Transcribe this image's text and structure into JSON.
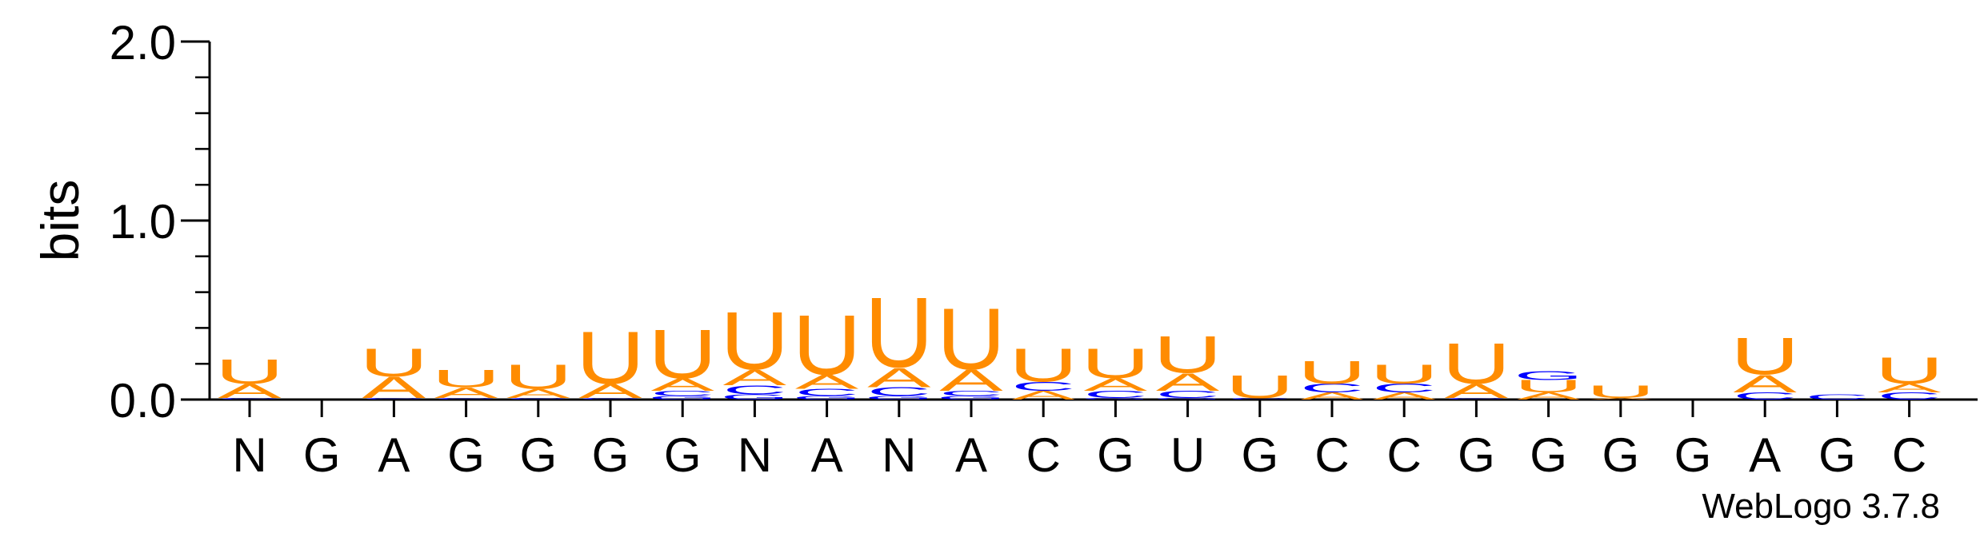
{
  "chart_data": {
    "type": "sequence-logo",
    "ylabel": "bits",
    "ylim": [
      0,
      2.0
    ],
    "yticks": [
      "0.0",
      "1.0",
      "2.0"
    ],
    "credit": "WebLogo 3.7.8",
    "colors": {
      "U": "#ff8c00",
      "A": "#ff8c00",
      "C": "#0000ff",
      "G": "#0000ff"
    },
    "positions": [
      {
        "label": "N",
        "stack": [
          {
            "letter": "C",
            "bits": 0.01
          },
          {
            "letter": "A",
            "bits": 0.08
          },
          {
            "letter": "U",
            "bits": 0.14
          }
        ]
      },
      {
        "label": "G",
        "stack": []
      },
      {
        "label": "A",
        "stack": [
          {
            "letter": "C",
            "bits": 0.01
          },
          {
            "letter": "A",
            "bits": 0.12
          },
          {
            "letter": "U",
            "bits": 0.16
          }
        ]
      },
      {
        "label": "G",
        "stack": [
          {
            "letter": "C",
            "bits": 0.01
          },
          {
            "letter": "A",
            "bits": 0.06
          },
          {
            "letter": "U",
            "bits": 0.1
          }
        ]
      },
      {
        "label": "G",
        "stack": [
          {
            "letter": "C",
            "bits": 0.01
          },
          {
            "letter": "A",
            "bits": 0.05
          },
          {
            "letter": "U",
            "bits": 0.14
          }
        ]
      },
      {
        "label": "G",
        "stack": [
          {
            "letter": "C",
            "bits": 0.01
          },
          {
            "letter": "A",
            "bits": 0.08
          },
          {
            "letter": "U",
            "bits": 0.3
          }
        ]
      },
      {
        "label": "G",
        "stack": [
          {
            "letter": "G",
            "bits": 0.02
          },
          {
            "letter": "C",
            "bits": 0.03
          },
          {
            "letter": "A",
            "bits": 0.07
          },
          {
            "letter": "U",
            "bits": 0.28
          }
        ]
      },
      {
        "label": "N",
        "stack": [
          {
            "letter": "G",
            "bits": 0.03
          },
          {
            "letter": "C",
            "bits": 0.05
          },
          {
            "letter": "A",
            "bits": 0.09
          },
          {
            "letter": "U",
            "bits": 0.33
          }
        ]
      },
      {
        "label": "A",
        "stack": [
          {
            "letter": "G",
            "bits": 0.02
          },
          {
            "letter": "C",
            "bits": 0.04
          },
          {
            "letter": "A",
            "bits": 0.08
          },
          {
            "letter": "U",
            "bits": 0.34
          }
        ]
      },
      {
        "label": "N",
        "stack": [
          {
            "letter": "G",
            "bits": 0.02
          },
          {
            "letter": "C",
            "bits": 0.05
          },
          {
            "letter": "A",
            "bits": 0.11
          },
          {
            "letter": "U",
            "bits": 0.4
          }
        ]
      },
      {
        "label": "A",
        "stack": [
          {
            "letter": "G",
            "bits": 0.02
          },
          {
            "letter": "C",
            "bits": 0.03
          },
          {
            "letter": "A",
            "bits": 0.12
          },
          {
            "letter": "U",
            "bits": 0.35
          }
        ]
      },
      {
        "label": "C",
        "stack": [
          {
            "letter": "A",
            "bits": 0.05
          },
          {
            "letter": "C",
            "bits": 0.05
          },
          {
            "letter": "U",
            "bits": 0.19
          }
        ]
      },
      {
        "label": "G",
        "stack": [
          {
            "letter": "G",
            "bits": 0.01
          },
          {
            "letter": "C",
            "bits": 0.04
          },
          {
            "letter": "A",
            "bits": 0.07
          },
          {
            "letter": "U",
            "bits": 0.17
          }
        ]
      },
      {
        "label": "U",
        "stack": [
          {
            "letter": "G",
            "bits": 0.01
          },
          {
            "letter": "C",
            "bits": 0.04
          },
          {
            "letter": "A",
            "bits": 0.1
          },
          {
            "letter": "U",
            "bits": 0.21
          }
        ]
      },
      {
        "label": "G",
        "stack": [
          {
            "letter": "C",
            "bits": 0.01
          },
          {
            "letter": "U",
            "bits": 0.13
          }
        ]
      },
      {
        "label": "C",
        "stack": [
          {
            "letter": "A",
            "bits": 0.04
          },
          {
            "letter": "C",
            "bits": 0.05
          },
          {
            "letter": "U",
            "bits": 0.13
          }
        ]
      },
      {
        "label": "C",
        "stack": [
          {
            "letter": "A",
            "bits": 0.04
          },
          {
            "letter": "C",
            "bits": 0.05
          },
          {
            "letter": "U",
            "bits": 0.11
          }
        ]
      },
      {
        "label": "G",
        "stack": [
          {
            "letter": "C",
            "bits": 0.01
          },
          {
            "letter": "A",
            "bits": 0.08
          },
          {
            "letter": "U",
            "bits": 0.23
          }
        ]
      },
      {
        "label": "G",
        "stack": [
          {
            "letter": "A",
            "bits": 0.04
          },
          {
            "letter": "U",
            "bits": 0.07
          },
          {
            "letter": "G",
            "bits": 0.05
          }
        ]
      },
      {
        "label": "G",
        "stack": [
          {
            "letter": "A",
            "bits": 0.01
          },
          {
            "letter": "U",
            "bits": 0.07
          }
        ]
      },
      {
        "label": "G",
        "stack": []
      },
      {
        "label": "A",
        "stack": [
          {
            "letter": "C",
            "bits": 0.04
          },
          {
            "letter": "A",
            "bits": 0.1
          },
          {
            "letter": "U",
            "bits": 0.21
          }
        ]
      },
      {
        "label": "G",
        "stack": [
          {
            "letter": "C",
            "bits": 0.03
          }
        ]
      },
      {
        "label": "C",
        "stack": [
          {
            "letter": "C",
            "bits": 0.04
          },
          {
            "letter": "A",
            "bits": 0.05
          },
          {
            "letter": "U",
            "bits": 0.15
          }
        ]
      }
    ]
  }
}
